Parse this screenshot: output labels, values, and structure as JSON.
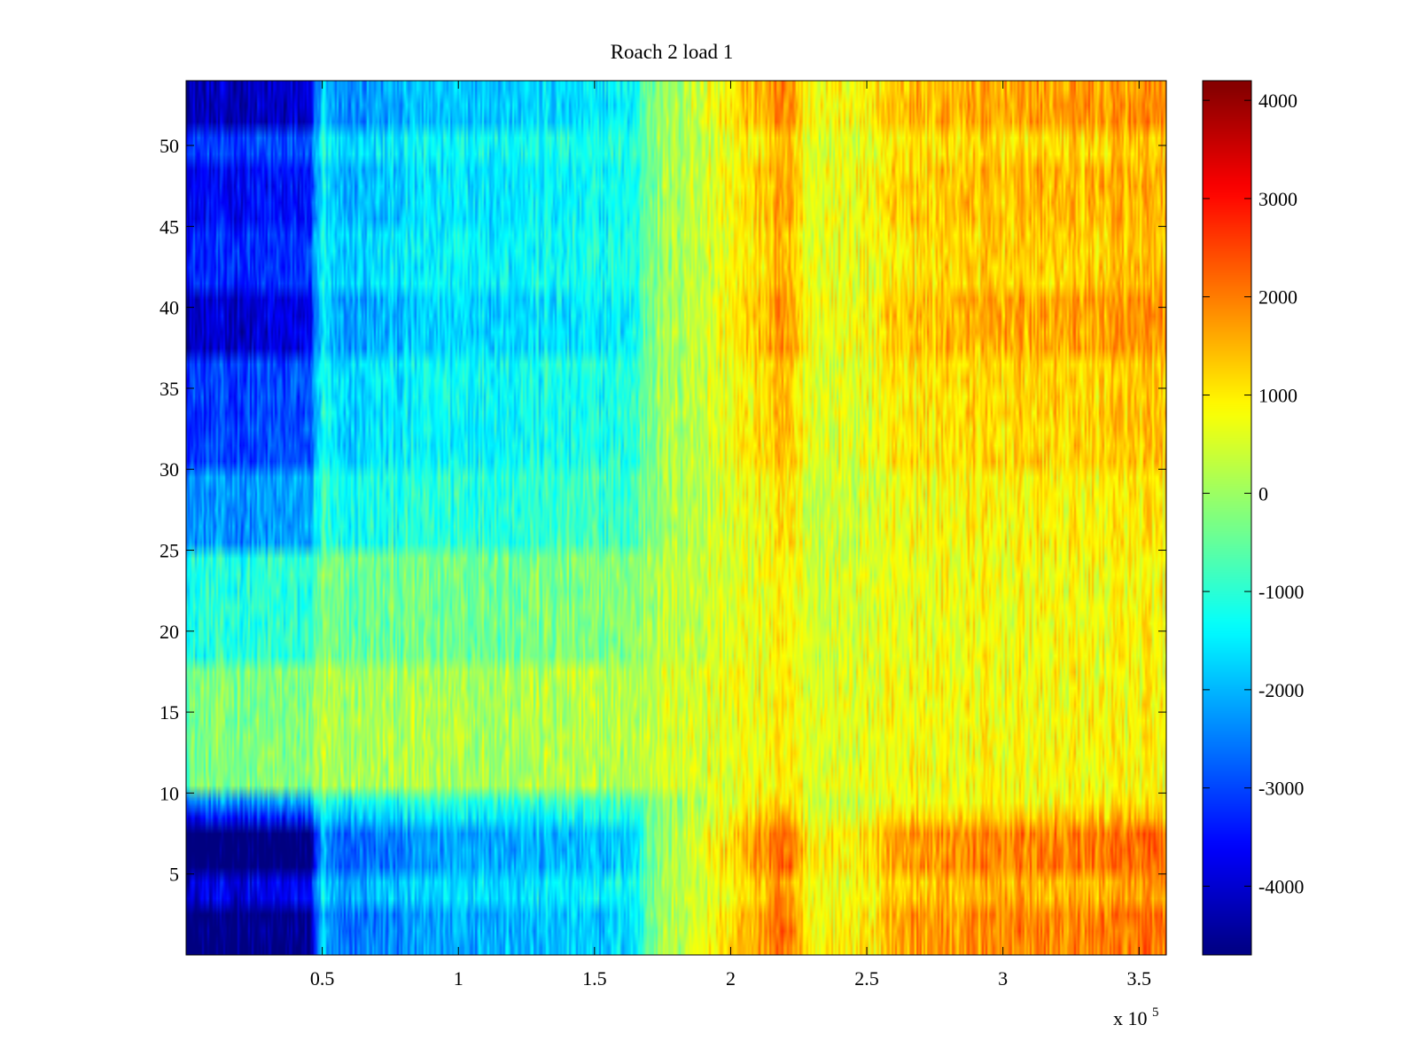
{
  "chart_data": {
    "type": "heatmap",
    "title": "Roach 2 load 1",
    "xlabel": "",
    "ylabel": "",
    "x_multiplier_label": "x 10",
    "x_multiplier_exponent": "5",
    "x_range": [
      0,
      3.6
    ],
    "y_range": [
      0,
      54
    ],
    "x_ticks": [
      0.5,
      1,
      1.5,
      2,
      2.5,
      3,
      3.5
    ],
    "x_tick_labels": [
      "0.5",
      "1",
      "1.5",
      "2",
      "2.5",
      "3",
      "3.5"
    ],
    "y_ticks": [
      5,
      10,
      15,
      20,
      25,
      30,
      35,
      40,
      45,
      50
    ],
    "y_tick_labels": [
      "5",
      "10",
      "15",
      "20",
      "25",
      "30",
      "35",
      "40",
      "45",
      "50"
    ],
    "rows": 54,
    "colormap": "jet",
    "color_range": [
      -4700,
      4200
    ],
    "colorbar_ticks": [
      4000,
      3000,
      2000,
      1000,
      0,
      -1000,
      -2000,
      -3000,
      -4000
    ],
    "colorbar_tick_labels": [
      "4000",
      "3000",
      "2000",
      "1000",
      "0",
      "-1000",
      "-2000",
      "-3000",
      "-4000"
    ],
    "column_trend": [
      {
        "x": 0.0,
        "value": -3900
      },
      {
        "x": 0.45,
        "value": -3700
      },
      {
        "x": 0.5,
        "value": -1500
      },
      {
        "x": 0.55,
        "value": -2200
      },
      {
        "x": 1.0,
        "value": -1600
      },
      {
        "x": 1.5,
        "value": -1500
      },
      {
        "x": 1.65,
        "value": -1300
      },
      {
        "x": 1.7,
        "value": -200
      },
      {
        "x": 2.0,
        "value": 900
      },
      {
        "x": 2.2,
        "value": 1700
      },
      {
        "x": 2.3,
        "value": 700
      },
      {
        "x": 2.5,
        "value": 800
      },
      {
        "x": 2.6,
        "value": 1300
      },
      {
        "x": 3.0,
        "value": 1500
      },
      {
        "x": 3.6,
        "value": 1600
      }
    ],
    "row_factor_bands": [
      {
        "rows": [
          1,
          3
        ],
        "factor": 1.25
      },
      {
        "rows": [
          4,
          5
        ],
        "factor": 1.0
      },
      {
        "rows": [
          6,
          8
        ],
        "factor": 1.3
      },
      {
        "rows": [
          9,
          9
        ],
        "factor": 0.9
      },
      {
        "rows": [
          10,
          10
        ],
        "factor": 0.6
      },
      {
        "rows": [
          11,
          18
        ],
        "factor": 0.2
      },
      {
        "rows": [
          19,
          25
        ],
        "factor": 0.35
      },
      {
        "rows": [
          26,
          30
        ],
        "factor": 0.6
      },
      {
        "rows": [
          31,
          37
        ],
        "factor": 0.8
      },
      {
        "rows": [
          38,
          41
        ],
        "factor": 1.05
      },
      {
        "rows": [
          42,
          45
        ],
        "factor": 0.85
      },
      {
        "rows": [
          46,
          49
        ],
        "factor": 0.95
      },
      {
        "rows": [
          50,
          51
        ],
        "factor": 0.8
      },
      {
        "rows": [
          52,
          54
        ],
        "factor": 1.1
      }
    ],
    "row_offset_bands": [
      {
        "rows": [
          11,
          18
        ],
        "offset": 500
      },
      {
        "rows": [
          19,
          25
        ],
        "offset": 250
      }
    ]
  }
}
